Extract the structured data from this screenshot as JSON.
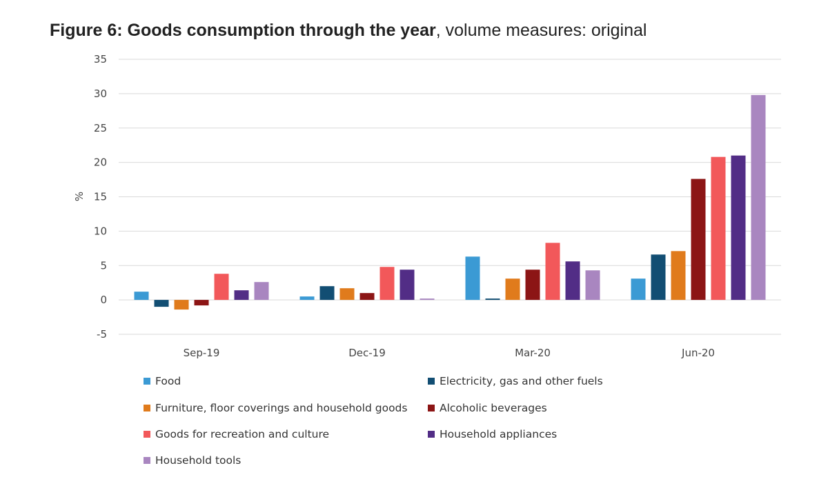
{
  "title_bold": "Figure 6: Goods consumption through the year",
  "title_rest": ", volume measures: original",
  "chart_data": {
    "type": "bar",
    "title": "Figure 6: Goods consumption through the year, volume measures: original",
    "xlabel": "",
    "ylabel": "%",
    "ylim": [
      -5,
      35
    ],
    "yticks": [
      35,
      30,
      25,
      20,
      15,
      10,
      5,
      0,
      -5
    ],
    "grid": true,
    "legend_position": "bottom",
    "categories": [
      "Sep-19",
      "Dec-19",
      "Mar-20",
      "Jun-20"
    ],
    "series": [
      {
        "name": "Food",
        "color": "#3b9ad4",
        "values": [
          1.2,
          0.5,
          6.3,
          3.1
        ]
      },
      {
        "name": "Electricity, gas and other fuels",
        "color": "#124e73",
        "values": [
          -1.0,
          2.0,
          0.2,
          6.6
        ]
      },
      {
        "name": "Furniture, floor coverings and household goods",
        "color": "#e07b1c",
        "values": [
          -1.4,
          1.7,
          3.1,
          7.1
        ]
      },
      {
        "name": "Alcoholic beverages",
        "color": "#8c1515",
        "values": [
          -0.8,
          1.0,
          4.4,
          17.6
        ]
      },
      {
        "name": "Goods for recreation and culture",
        "color": "#f2585a",
        "values": [
          3.8,
          4.8,
          8.3,
          20.8
        ]
      },
      {
        "name": "Household appliances",
        "color": "#522d86",
        "values": [
          1.4,
          4.4,
          5.6,
          21.0
        ]
      },
      {
        "name": "Household tools",
        "color": "#a986c0",
        "values": [
          2.6,
          0.2,
          4.3,
          29.8
        ]
      }
    ]
  }
}
